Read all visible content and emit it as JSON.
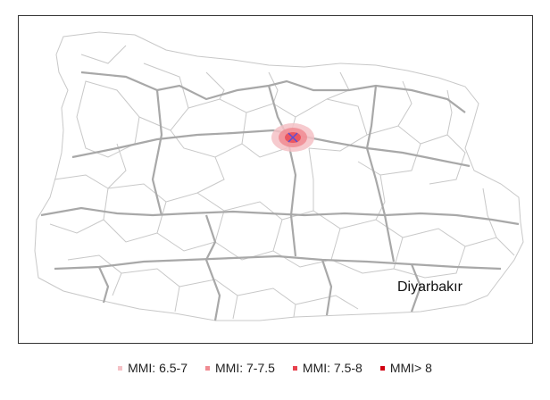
{
  "map": {
    "city_label": "Diyarbakır",
    "colors": {
      "district_border": "#c8c8c8",
      "province_border": "#a8a8a8",
      "epicenter_marker": "#5a4fd6"
    },
    "shake_zones": [
      {
        "label": "MMI: 6.5-7",
        "color": "#f5c1c6"
      },
      {
        "label": "MMI: 7-7.5",
        "color": "#f08b92"
      },
      {
        "label": "MMI: 7.5-8",
        "color": "#e8424e"
      },
      {
        "label": "MMI> 8",
        "color": "#d10010"
      }
    ]
  }
}
